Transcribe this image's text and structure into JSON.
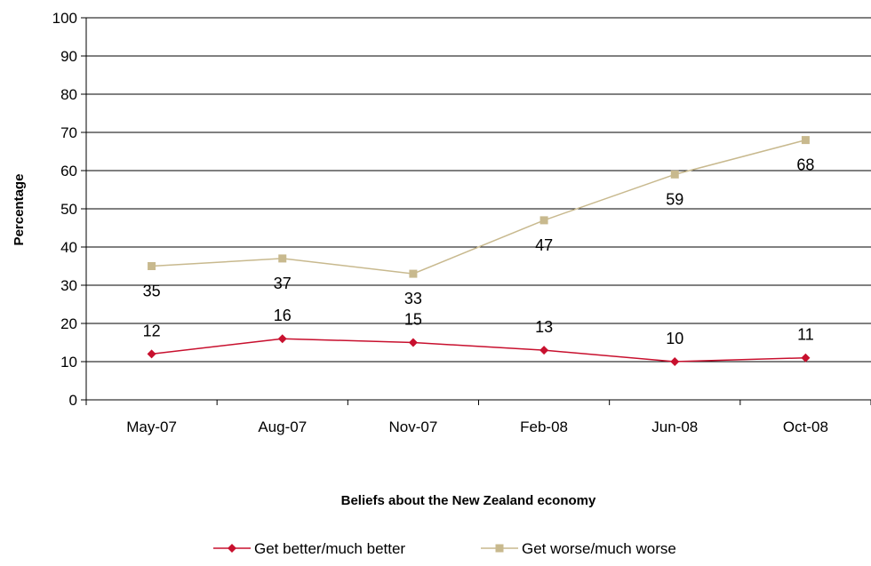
{
  "chart_data": {
    "type": "line",
    "categories": [
      "May-07",
      "Aug-07",
      "Nov-07",
      "Feb-08",
      "Jun-08",
      "Oct-08"
    ],
    "series": [
      {
        "name": "Get better/much better",
        "values": [
          12,
          16,
          15,
          13,
          10,
          11
        ],
        "color": "#c8102e",
        "marker": "diamond"
      },
      {
        "name": "Get worse/much worse",
        "values": [
          35,
          37,
          33,
          47,
          59,
          68
        ],
        "color": "#c8b98e",
        "marker": "square"
      }
    ],
    "title": "",
    "xlabel": "Beliefs about the New Zealand economy",
    "ylabel": "Percentage",
    "ylim": [
      0,
      100
    ],
    "yticks": [
      0,
      10,
      20,
      30,
      40,
      50,
      60,
      70,
      80,
      90,
      100
    ],
    "grid": true,
    "legend": "bottom"
  }
}
